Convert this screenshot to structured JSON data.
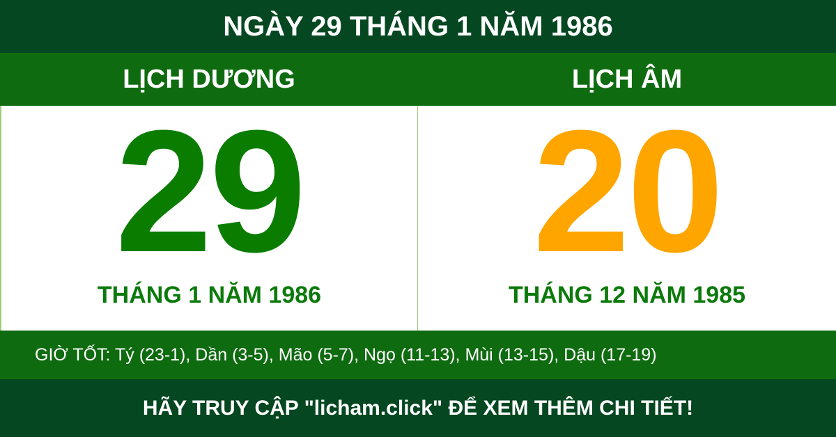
{
  "header": {
    "title": "NGÀY 29 THÁNG 1 NĂM 1986"
  },
  "solar": {
    "label": "LỊCH DƯƠNG",
    "day": "29",
    "month_year": "THÁNG 1 NĂM 1986",
    "color": "#0a7d00"
  },
  "lunar": {
    "label": "LỊCH ÂM",
    "day": "20",
    "month_year": "THÁNG 12 NĂM 1985",
    "color": "#ffa500"
  },
  "good_hours": "GIỜ TỐT: Tý (23-1), Dần (3-5), Mão (5-7), Ngọ (11-13), Mùi (13-15), Dậu (17-19)",
  "footer": {
    "cta": "HÃY TRUY CẬP \"licham.click\" ĐỂ XEM THÊM CHI TIẾT!"
  },
  "colors": {
    "dark_green": "#044721",
    "band_green": "#0f6b10"
  }
}
